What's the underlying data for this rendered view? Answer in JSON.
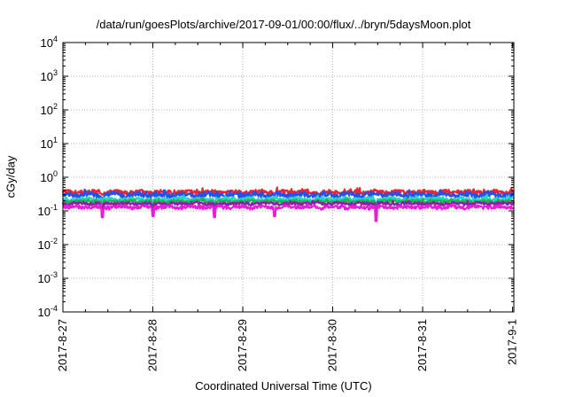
{
  "chart_data": {
    "type": "line",
    "title": "/data/run/goesPlots/archive/2017-09-01/00:00/flux/../bryn/5daysMoon.plot",
    "xlabel": "Coordinated Universal Time (UTC)",
    "ylabel": "cGy/day",
    "yscale": "log",
    "ylim": [
      0.0001,
      10000
    ],
    "y_ticks": [
      {
        "value": 0.0001,
        "base": "10",
        "exp": "-4"
      },
      {
        "value": 0.001,
        "base": "10",
        "exp": "-3"
      },
      {
        "value": 0.01,
        "base": "10",
        "exp": "-2"
      },
      {
        "value": 0.1,
        "base": "10",
        "exp": "-1"
      },
      {
        "value": 1,
        "base": "10",
        "exp": "0"
      },
      {
        "value": 10,
        "base": "10",
        "exp": "1"
      },
      {
        "value": 100,
        "base": "10",
        "exp": "2"
      },
      {
        "value": 1000,
        "base": "10",
        "exp": "3"
      },
      {
        "value": 10000,
        "base": "10",
        "exp": "4"
      }
    ],
    "xlim": [
      "2017-08-27",
      "2017-09-01 00:20"
    ],
    "x_ticks": [
      {
        "value": "2017-08-27",
        "label": "2017-8-27"
      },
      {
        "value": "2017-08-28",
        "label": "2017-8-28"
      },
      {
        "value": "2017-08-29",
        "label": "2017-8-29"
      },
      {
        "value": "2017-08-30",
        "label": "2017-8-30"
      },
      {
        "value": "2017-08-31",
        "label": "2017-8-31"
      },
      {
        "value": "2017-09-01",
        "label": "2017-9-1"
      }
    ],
    "grid": true,
    "legend": "none",
    "series": [
      {
        "color": "#e8282f",
        "base": 0.36,
        "amp": 0.05,
        "dips": [],
        "seed": 3
      },
      {
        "color": "#2a4fe8",
        "base": 0.3,
        "amp": 0.05,
        "dips": [],
        "seed": 7
      },
      {
        "color": "#22d6c8",
        "base": 0.22,
        "amp": 0.03,
        "dips": [],
        "seed": 11
      },
      {
        "color": "#22b14c",
        "base": 0.19,
        "amp": 0.02,
        "dips": [],
        "seed": 13
      },
      {
        "color": "#8b1ea8",
        "base": 0.165,
        "amp": 0.015,
        "dips": [],
        "seed": 17
      },
      {
        "color": "#e81ed8",
        "base": 0.13,
        "amp": 0.015,
        "dips": [
          {
            "day": "2017-08-27 10:30",
            "value": 0.065
          },
          {
            "day": "2017-08-28 00:05",
            "value": 0.07
          },
          {
            "day": "2017-08-28 16:30",
            "value": 0.065
          },
          {
            "day": "2017-08-29 08:30",
            "value": 0.07
          },
          {
            "day": "2017-08-30 11:30",
            "value": 0.05
          }
        ],
        "seed": 19
      }
    ],
    "secondary_dips": [
      {
        "day": "2017-08-27 10:30",
        "value": 0.11
      },
      {
        "day": "2017-08-28 00:05",
        "value": 0.1
      },
      {
        "day": "2017-08-28 16:30",
        "value": 0.11
      },
      {
        "day": "2017-08-30 11:30",
        "value": 0.1
      }
    ]
  }
}
